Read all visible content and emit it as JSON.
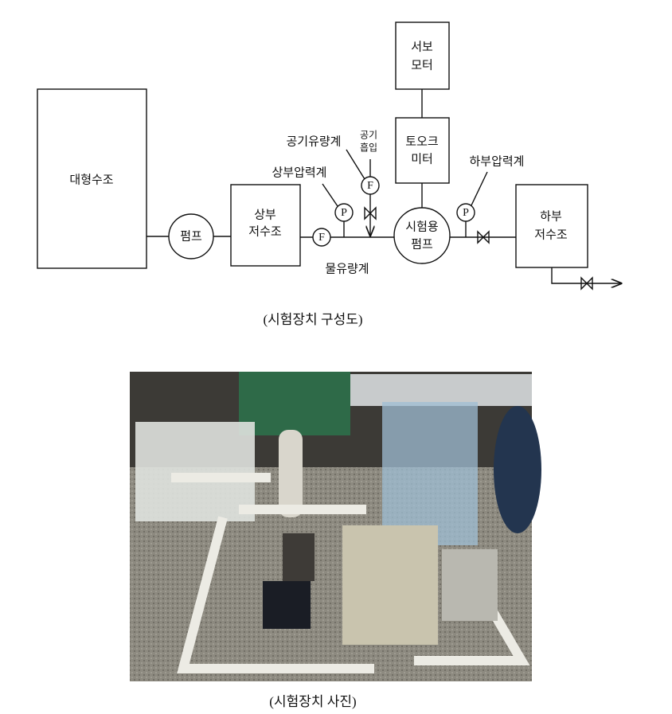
{
  "diagram": {
    "nodes": [
      {
        "label": [
          "대형수조"
        ]
      },
      {
        "label": [
          "펌프"
        ]
      },
      {
        "label": [
          "상부",
          "저수조"
        ]
      },
      {
        "label": [
          "서보",
          "모터"
        ]
      },
      {
        "label": [
          "토오크",
          "미터"
        ]
      },
      {
        "label": [
          "시험용",
          "펌프"
        ]
      },
      {
        "label": [
          "하부",
          "저수조"
        ]
      }
    ],
    "instruments": [
      {
        "symbol": "F",
        "label": "물유량계"
      },
      {
        "symbol": "P",
        "label": "상부압력계"
      },
      {
        "symbol": "F",
        "label": "공기유량계"
      },
      {
        "symbol": "P",
        "label": "하부압력계"
      }
    ],
    "air_inlet": [
      "공기",
      "흡입"
    ],
    "caption": "(시험장치 구성도)"
  },
  "photo": {
    "caption": "(시험장치 사진)"
  }
}
